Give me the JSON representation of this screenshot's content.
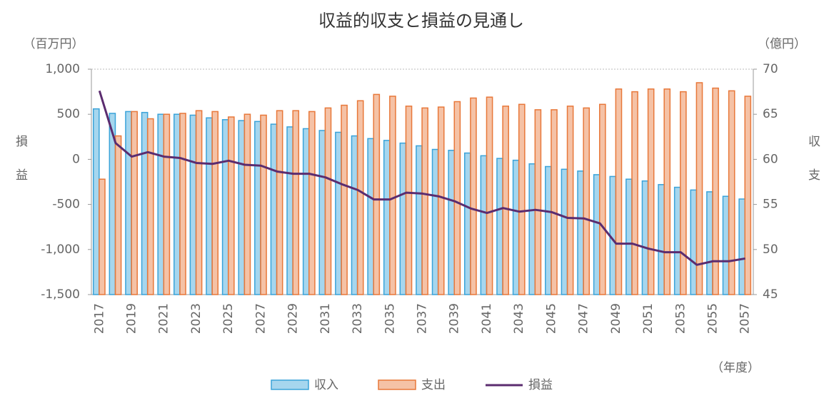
{
  "chart_data": {
    "type": "bar",
    "title": "収益的収支と損益の見通し",
    "y_unit": "（百万円）",
    "y2_unit": "（億円）",
    "ylabel": "損益",
    "y2label": "収支",
    "xlabel": "（年度）",
    "categories": [
      "2017",
      null,
      "2019",
      null,
      "2021",
      null,
      "2023",
      null,
      "2025",
      null,
      "2027",
      null,
      "2029",
      null,
      "2031",
      null,
      "2033",
      null,
      "2035",
      null,
      "2037",
      null,
      "2039",
      null,
      "2041",
      null,
      "2043",
      null,
      "2045",
      null,
      "2047",
      null,
      "2049",
      null,
      "2051",
      null,
      "2053",
      null,
      "2055",
      null,
      "2057"
    ],
    "ylim": [
      -1500,
      1000
    ],
    "yticks": [
      {
        "value": 1000,
        "label": "1,000"
      },
      500,
      0,
      -500,
      {
        "value": -1000,
        "label": "-1,000"
      },
      {
        "value": -1500,
        "label": "-1,500"
      }
    ],
    "y2lim": [
      45,
      70
    ],
    "y2ticks": [
      70,
      65,
      60,
      55,
      50,
      45
    ],
    "grid": false,
    "legend": "bottom",
    "series": [
      {
        "name": "収入",
        "type": "bar",
        "axis": "y2",
        "color": "#3aa3d9",
        "values": [
          65.6,
          65.1,
          65.3,
          65.2,
          65.0,
          65.0,
          64.9,
          64.6,
          64.4,
          64.3,
          64.2,
          63.9,
          63.6,
          63.4,
          63.2,
          63.0,
          62.6,
          62.3,
          62.1,
          61.8,
          61.5,
          61.1,
          61.0,
          60.7,
          60.4,
          60.1,
          59.9,
          59.5,
          59.2,
          58.9,
          58.7,
          58.3,
          58.1,
          57.8,
          57.6,
          57.2,
          56.9,
          56.6,
          56.4,
          55.9,
          55.6
        ]
      },
      {
        "name": "支出",
        "type": "bar",
        "axis": "y2",
        "color": "#e8783a",
        "values": [
          57.8,
          62.6,
          65.3,
          64.5,
          65.0,
          65.1,
          65.4,
          65.3,
          64.7,
          65.0,
          64.9,
          65.4,
          65.4,
          65.3,
          65.7,
          66.0,
          66.5,
          67.2,
          67.0,
          65.9,
          65.7,
          65.8,
          66.4,
          66.8,
          66.9,
          65.9,
          66.1,
          65.5,
          65.5,
          65.9,
          65.7,
          66.1,
          67.8,
          67.5,
          67.8,
          67.8,
          67.5,
          68.5,
          67.9,
          67.6,
          67.0
        ]
      },
      {
        "name": "損益",
        "type": "line",
        "axis": "y",
        "color": "#5b2c6f",
        "values": [
          760,
          180,
          30,
          80,
          30,
          15,
          -40,
          -50,
          -15,
          -60,
          -70,
          -135,
          -160,
          -160,
          -200,
          -275,
          -340,
          -445,
          -445,
          -370,
          -380,
          -410,
          -465,
          -545,
          -595,
          -540,
          -580,
          -560,
          -585,
          -650,
          -655,
          -710,
          -935,
          -935,
          -990,
          -1030,
          -1030,
          -1170,
          -1130,
          -1130,
          -1100
        ]
      }
    ]
  }
}
